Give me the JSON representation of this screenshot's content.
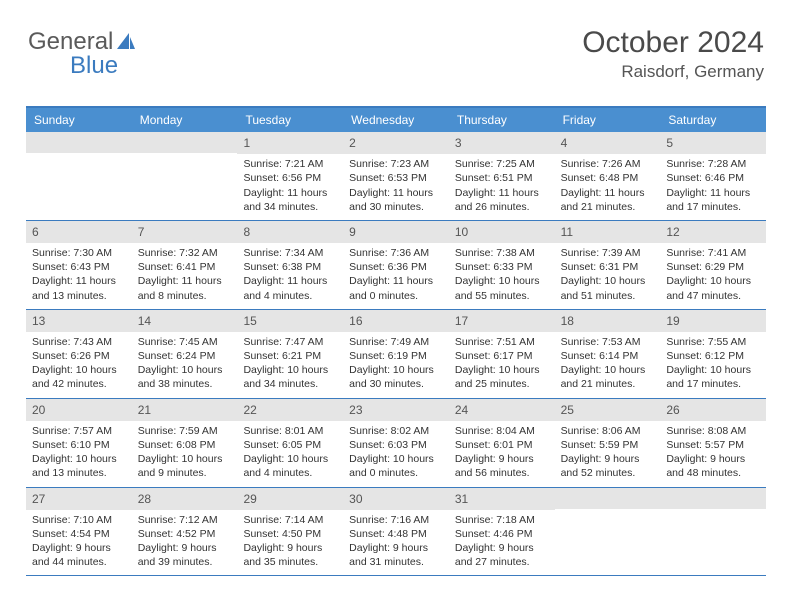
{
  "logo": {
    "text_a": "General",
    "text_b": "Blue",
    "sail_color": "#3b7bbf"
  },
  "title": {
    "main": "October 2024",
    "sub": "Raisdorf, Germany"
  },
  "colors": {
    "header_bg": "#4a8fd0",
    "header_text": "#ffffff",
    "border": "#3b7bbf",
    "daynum_bg": "#e5e5e5",
    "body_text": "#333333"
  },
  "day_headers": [
    "Sunday",
    "Monday",
    "Tuesday",
    "Wednesday",
    "Thursday",
    "Friday",
    "Saturday"
  ],
  "weeks": [
    [
      null,
      null,
      {
        "n": "1",
        "sr": "7:21 AM",
        "ss": "6:56 PM",
        "dl": "11 hours and 34 minutes."
      },
      {
        "n": "2",
        "sr": "7:23 AM",
        "ss": "6:53 PM",
        "dl": "11 hours and 30 minutes."
      },
      {
        "n": "3",
        "sr": "7:25 AM",
        "ss": "6:51 PM",
        "dl": "11 hours and 26 minutes."
      },
      {
        "n": "4",
        "sr": "7:26 AM",
        "ss": "6:48 PM",
        "dl": "11 hours and 21 minutes."
      },
      {
        "n": "5",
        "sr": "7:28 AM",
        "ss": "6:46 PM",
        "dl": "11 hours and 17 minutes."
      }
    ],
    [
      {
        "n": "6",
        "sr": "7:30 AM",
        "ss": "6:43 PM",
        "dl": "11 hours and 13 minutes."
      },
      {
        "n": "7",
        "sr": "7:32 AM",
        "ss": "6:41 PM",
        "dl": "11 hours and 8 minutes."
      },
      {
        "n": "8",
        "sr": "7:34 AM",
        "ss": "6:38 PM",
        "dl": "11 hours and 4 minutes."
      },
      {
        "n": "9",
        "sr": "7:36 AM",
        "ss": "6:36 PM",
        "dl": "11 hours and 0 minutes."
      },
      {
        "n": "10",
        "sr": "7:38 AM",
        "ss": "6:33 PM",
        "dl": "10 hours and 55 minutes."
      },
      {
        "n": "11",
        "sr": "7:39 AM",
        "ss": "6:31 PM",
        "dl": "10 hours and 51 minutes."
      },
      {
        "n": "12",
        "sr": "7:41 AM",
        "ss": "6:29 PM",
        "dl": "10 hours and 47 minutes."
      }
    ],
    [
      {
        "n": "13",
        "sr": "7:43 AM",
        "ss": "6:26 PM",
        "dl": "10 hours and 42 minutes."
      },
      {
        "n": "14",
        "sr": "7:45 AM",
        "ss": "6:24 PM",
        "dl": "10 hours and 38 minutes."
      },
      {
        "n": "15",
        "sr": "7:47 AM",
        "ss": "6:21 PM",
        "dl": "10 hours and 34 minutes."
      },
      {
        "n": "16",
        "sr": "7:49 AM",
        "ss": "6:19 PM",
        "dl": "10 hours and 30 minutes."
      },
      {
        "n": "17",
        "sr": "7:51 AM",
        "ss": "6:17 PM",
        "dl": "10 hours and 25 minutes."
      },
      {
        "n": "18",
        "sr": "7:53 AM",
        "ss": "6:14 PM",
        "dl": "10 hours and 21 minutes."
      },
      {
        "n": "19",
        "sr": "7:55 AM",
        "ss": "6:12 PM",
        "dl": "10 hours and 17 minutes."
      }
    ],
    [
      {
        "n": "20",
        "sr": "7:57 AM",
        "ss": "6:10 PM",
        "dl": "10 hours and 13 minutes."
      },
      {
        "n": "21",
        "sr": "7:59 AM",
        "ss": "6:08 PM",
        "dl": "10 hours and 9 minutes."
      },
      {
        "n": "22",
        "sr": "8:01 AM",
        "ss": "6:05 PM",
        "dl": "10 hours and 4 minutes."
      },
      {
        "n": "23",
        "sr": "8:02 AM",
        "ss": "6:03 PM",
        "dl": "10 hours and 0 minutes."
      },
      {
        "n": "24",
        "sr": "8:04 AM",
        "ss": "6:01 PM",
        "dl": "9 hours and 56 minutes."
      },
      {
        "n": "25",
        "sr": "8:06 AM",
        "ss": "5:59 PM",
        "dl": "9 hours and 52 minutes."
      },
      {
        "n": "26",
        "sr": "8:08 AM",
        "ss": "5:57 PM",
        "dl": "9 hours and 48 minutes."
      }
    ],
    [
      {
        "n": "27",
        "sr": "7:10 AM",
        "ss": "4:54 PM",
        "dl": "9 hours and 44 minutes."
      },
      {
        "n": "28",
        "sr": "7:12 AM",
        "ss": "4:52 PM",
        "dl": "9 hours and 39 minutes."
      },
      {
        "n": "29",
        "sr": "7:14 AM",
        "ss": "4:50 PM",
        "dl": "9 hours and 35 minutes."
      },
      {
        "n": "30",
        "sr": "7:16 AM",
        "ss": "4:48 PM",
        "dl": "9 hours and 31 minutes."
      },
      {
        "n": "31",
        "sr": "7:18 AM",
        "ss": "4:46 PM",
        "dl": "9 hours and 27 minutes."
      },
      null,
      null
    ]
  ],
  "labels": {
    "sunrise": "Sunrise: ",
    "sunset": "Sunset: ",
    "daylight": "Daylight: "
  }
}
